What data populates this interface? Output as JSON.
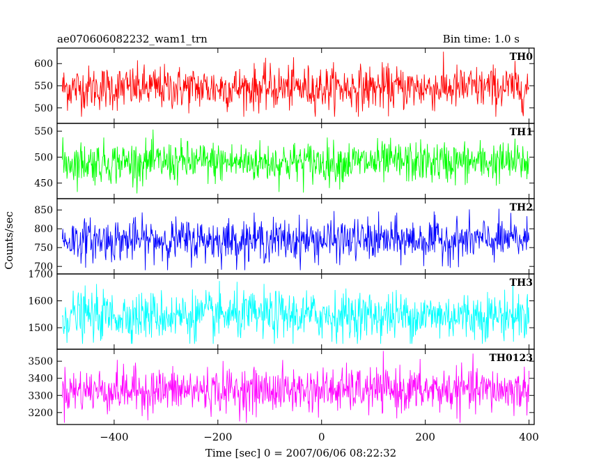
{
  "chart_data": {
    "type": "line",
    "title": "ae070606082232_wam1_trn",
    "subtitle": "Bin time: 1.0 s",
    "xlabel": "Time [sec] 0 = 2007/06/06 08:22:32",
    "ylabel": "Counts/sec",
    "xlim": [
      -510,
      410
    ],
    "x_range": [
      -500,
      400
    ],
    "xticks": [
      -400,
      -200,
      0,
      200,
      400
    ],
    "xtick_labels": [
      "−400",
      "−200",
      "0",
      "200",
      "400"
    ],
    "grid": false,
    "panels": [
      {
        "name": "TH0",
        "color": "#ff0000",
        "ylim": [
          465,
          635
        ],
        "yticks": [
          500,
          550,
          600
        ],
        "mean": 545,
        "noise": 25,
        "range": [
          480,
          630
        ]
      },
      {
        "name": "TH1",
        "color": "#00ff00",
        "ylim": [
          420,
          565
        ],
        "yticks": [
          450,
          500,
          550
        ],
        "mean": 490,
        "noise": 20,
        "range": [
          430,
          560
        ]
      },
      {
        "name": "TH2",
        "color": "#0000ff",
        "ylim": [
          680,
          880
        ],
        "yticks": [
          700,
          750,
          800,
          850
        ],
        "mean": 770,
        "noise": 28,
        "range": [
          690,
          880
        ]
      },
      {
        "name": "TH3",
        "color": "#00ffff",
        "ylim": [
          1420,
          1700
        ],
        "yticks": [
          1500,
          1600,
          1700
        ],
        "mean": 1545,
        "noise": 45,
        "range": [
          1440,
          1700
        ]
      },
      {
        "name": "TH0123",
        "color": "#ff00ff",
        "ylim": [
          3130,
          3570
        ],
        "yticks": [
          3200,
          3300,
          3400,
          3500
        ],
        "mean": 3330,
        "noise": 65,
        "range": [
          3140,
          3560
        ]
      }
    ]
  }
}
